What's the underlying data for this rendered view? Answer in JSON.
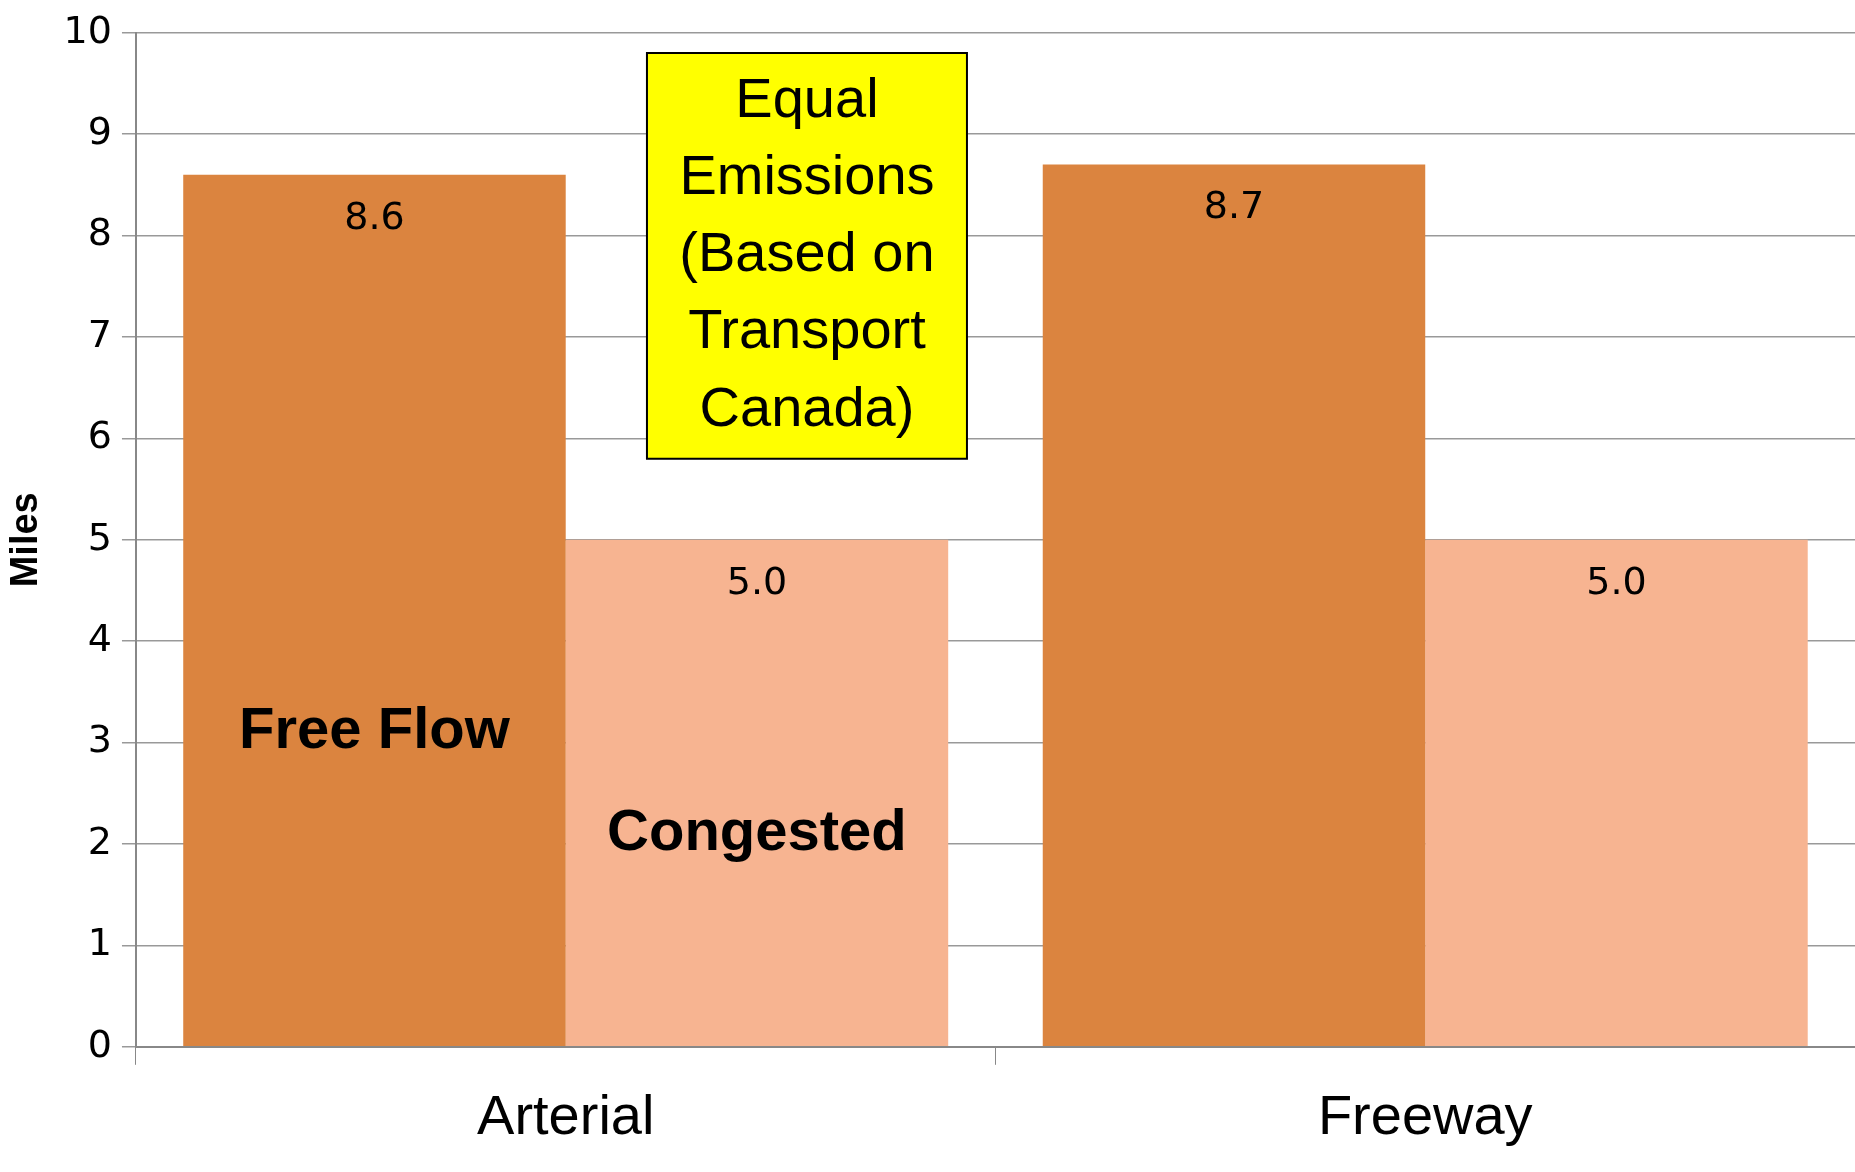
{
  "chart_data": {
    "type": "bar",
    "ylabel": "Miles",
    "categories": [
      "Arterial",
      "Freeway"
    ],
    "series": [
      {
        "name": "Free Flow",
        "color": "#db843f",
        "values": [
          8.6,
          8.7
        ],
        "value_labels": [
          "8.6",
          "8.7"
        ]
      },
      {
        "name": "Congested",
        "color": "#f7b491",
        "values": [
          5.0,
          5.0
        ],
        "value_labels": [
          "5.0",
          "5.0"
        ]
      }
    ],
    "ylim": [
      0,
      10
    ],
    "yticks": [
      0,
      1,
      2,
      3,
      4,
      5,
      6,
      7,
      8,
      9,
      10
    ],
    "grid": "y",
    "legend": false,
    "annotations": [
      "Equal Emissions (Based on Transport Canada)"
    ]
  }
}
